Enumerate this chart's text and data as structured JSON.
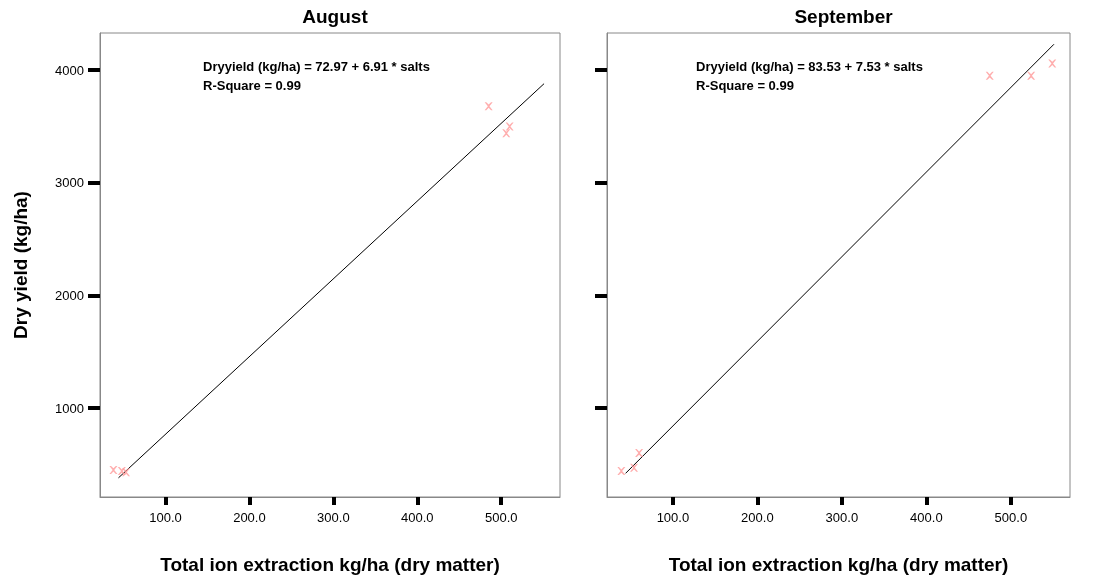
{
  "chart_data": [
    {
      "type": "scatter",
      "title": "August",
      "xlabel": "Total ion extraction kg/ha (dry matter)",
      "ylabel": "Dry yield (kg/ha)",
      "grid": false,
      "annotations": [
        "Dryyield (kg/ha) = 72.97 + 6.91 * salts",
        "R-Square = 0.99"
      ],
      "xlim": [
        22,
        570
      ],
      "ylim": [
        210,
        4330
      ],
      "xticks": [
        {
          "value": 100,
          "label": "100.0"
        },
        {
          "value": 200,
          "label": "200.0"
        },
        {
          "value": 300,
          "label": "300.0"
        },
        {
          "value": 400,
          "label": "400.0"
        },
        {
          "value": 500,
          "label": "500.0"
        }
      ],
      "yticks": [
        1000,
        2000,
        3000,
        4000
      ],
      "series": [
        {
          "color": "#ff9999",
          "marker": "cross",
          "x": [
            38,
            48,
            53,
            485,
            506,
            510
          ],
          "values": [
            450,
            440,
            430,
            3680,
            3440,
            3500
          ]
        },
        {
          "type": "line",
          "marker": "none",
          "color": "#000000",
          "x": [
            44,
            551
          ],
          "values": [
            380,
            3880
          ]
        }
      ]
    },
    {
      "type": "scatter",
      "title": "September",
      "xlabel": "Total ion extraction kg/ha (dry matter)",
      "grid": false,
      "tick_labels": "x",
      "annotations": [
        "Dryyield (kg/ha) = 83.53 + 7.53 * salts",
        "R-Square = 0.99"
      ],
      "xlim": [
        22,
        570
      ],
      "ylim": [
        210,
        4330
      ],
      "xticks": [
        {
          "value": 100,
          "label": "100.0"
        },
        {
          "value": 200,
          "label": "200.0"
        },
        {
          "value": 300,
          "label": "300.0"
        },
        {
          "value": 400,
          "label": "400.0"
        },
        {
          "value": 500,
          "label": "500.0"
        }
      ],
      "yticks": [
        1000,
        2000,
        3000,
        4000
      ],
      "series": [
        {
          "color": "#ff9999",
          "marker": "cross",
          "x": [
            39,
            54,
            60,
            475,
            524,
            549
          ],
          "values": [
            440,
            470,
            600,
            3950,
            3950,
            4060
          ]
        },
        {
          "type": "line",
          "marker": "none",
          "color": "#000000",
          "x": [
            44,
            551
          ],
          "values": [
            420,
            4230
          ]
        }
      ]
    }
  ]
}
